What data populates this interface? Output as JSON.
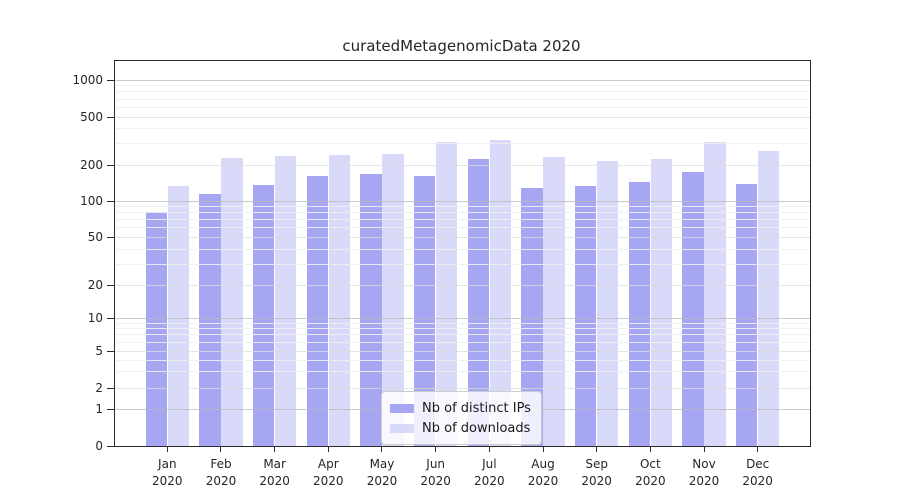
{
  "title": "curatedMetagenomicData 2020",
  "chart_data": {
    "type": "bar",
    "title": "curatedMetagenomicData 2020",
    "categories": [
      "Jan",
      "Feb",
      "Mar",
      "Apr",
      "May",
      "Jun",
      "Jul",
      "Aug",
      "Sep",
      "Oct",
      "Nov",
      "Dec"
    ],
    "category_year": "2020",
    "series": [
      {
        "name": "Nb of distinct IPs",
        "color": "#a6a6f2",
        "values": [
          80,
          113,
          135,
          160,
          165,
          160,
          222,
          127,
          131,
          143,
          172,
          137
        ]
      },
      {
        "name": "Nb of downloads",
        "color": "#d9d9f9",
        "values": [
          133,
          225,
          236,
          239,
          244,
          305,
          322,
          229,
          215,
          224,
          308,
          260
        ]
      }
    ],
    "yscale": "symlog",
    "ylim": [
      0,
      1300
    ],
    "y_ticks": [
      0,
      1,
      2,
      5,
      10,
      20,
      50,
      100,
      200,
      500,
      1000
    ],
    "y_minor_ticks": [
      3,
      4,
      6,
      7,
      8,
      9,
      30,
      40,
      60,
      70,
      80,
      90,
      300,
      400,
      600,
      700,
      800,
      900
    ],
    "xlabel": "",
    "ylabel": "",
    "grid": true,
    "legend_position": "lower center"
  }
}
